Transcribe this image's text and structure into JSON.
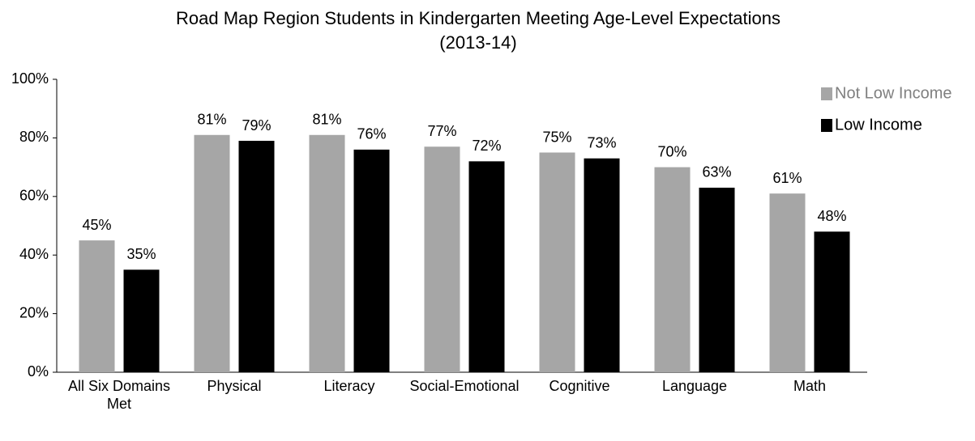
{
  "chart_data": {
    "type": "bar",
    "title": [
      "Road Map Region Students in Kindergarten Meeting Age-Level Expectations",
      "(2013-14)"
    ],
    "categories": [
      "All Six Domains Met",
      "Physical",
      "Literacy",
      "Social-Emotional",
      "Cognitive",
      "Language",
      "Math"
    ],
    "series": [
      {
        "name": "Not Low Income",
        "color": "#a6a6a6",
        "values": [
          45,
          81,
          81,
          77,
          75,
          70,
          61
        ],
        "value_labels": [
          "45%",
          "81%",
          "81%",
          "77%",
          "75%",
          "70%",
          "61%"
        ]
      },
      {
        "name": "Low Income",
        "color": "#000000",
        "values": [
          35,
          79,
          76,
          72,
          73,
          63,
          48
        ],
        "value_labels": [
          "35%",
          "79%",
          "76%",
          "72%",
          "73%",
          "63%",
          "48%"
        ]
      }
    ],
    "ylim": [
      0,
      100
    ],
    "yticks": [
      {
        "value": 0,
        "label": "0%"
      },
      {
        "value": 20,
        "label": "20%"
      },
      {
        "value": 40,
        "label": "40%"
      },
      {
        "value": 60,
        "label": "60%"
      },
      {
        "value": 80,
        "label": "80%"
      },
      {
        "value": 100,
        "label": "100%"
      }
    ],
    "grid": false,
    "legend": "top-right"
  }
}
